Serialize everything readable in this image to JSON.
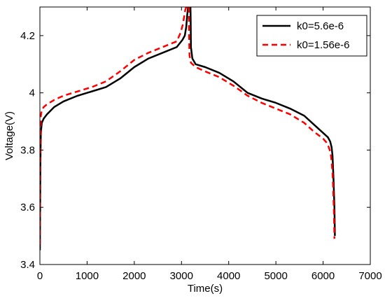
{
  "chart_data": {
    "type": "line",
    "title": "",
    "xlabel": "Time(s)",
    "ylabel": "Voltage(V)",
    "xlim": [
      0,
      7000
    ],
    "ylim": [
      3.4,
      4.3
    ],
    "xticks": [
      0,
      1000,
      2000,
      3000,
      4000,
      5000,
      6000,
      7000
    ],
    "xtick_labels": [
      "0",
      "1000",
      "2000",
      "3000",
      "4000",
      "5000",
      "6000",
      "7000"
    ],
    "yticks": [
      3.4,
      3.6,
      3.8,
      4.0,
      4.2
    ],
    "ytick_labels": [
      "3.4",
      "3.6",
      "3.8",
      "4",
      "4.2"
    ],
    "grid": false,
    "legend_position": "top-right",
    "series": [
      {
        "name": "k0=5.6e-6",
        "color": "#000000",
        "dash": "solid",
        "segments": [
          {
            "x": [
              0,
              10,
              20,
              40,
              80,
              150,
              300,
              500,
              800,
              1100,
              1400,
              1700,
              2000,
              2300,
              2600,
              2900,
              3020,
              3070,
              3100,
              3120,
              3140
            ],
            "y": [
              3.45,
              3.75,
              3.86,
              3.895,
              3.91,
              3.925,
              3.95,
              3.97,
              3.99,
              4.005,
              4.02,
              4.05,
              4.09,
              4.12,
              4.14,
              4.16,
              4.185,
              4.2,
              4.23,
              4.27,
              4.3
            ]
          },
          {
            "x": [
              3190,
              3195,
              3200,
              3230,
              3300,
              3500,
              3800,
              4100,
              4400,
              4700,
              5000,
              5300,
              5600,
              5800,
              6000,
              6100,
              6150,
              6180,
              6200,
              6210,
              6220,
              6230,
              6240,
              6250
            ],
            "y": [
              4.3,
              4.25,
              4.16,
              4.12,
              4.1,
              4.09,
              4.07,
              4.04,
              4.0,
              3.98,
              3.965,
              3.945,
              3.92,
              3.89,
              3.86,
              3.845,
              3.83,
              3.81,
              3.78,
              3.74,
              3.7,
              3.65,
              3.6,
              3.5
            ]
          }
        ]
      },
      {
        "name": "k0=1.56e-6",
        "color": "#ff0000",
        "dash": "dashed",
        "segments": [
          {
            "x": [
              0,
              10,
              20,
              40,
              80,
              150,
              300,
              500,
              800,
              1100,
              1400,
              1700,
              2000,
              2300,
              2600,
              2900,
              2980,
              3030,
              3060,
              3080,
              3100
            ],
            "y": [
              3.47,
              3.85,
              3.92,
              3.94,
              3.95,
              3.96,
              3.975,
              3.99,
              4.005,
              4.02,
              4.04,
              4.075,
              4.115,
              4.14,
              4.16,
              4.18,
              4.21,
              4.24,
              4.27,
              4.29,
              4.3
            ]
          },
          {
            "x": [
              3155,
              3160,
              3170,
              3200,
              3300,
              3500,
              3800,
              4100,
              4400,
              4700,
              5000,
              5300,
              5600,
              5800,
              6000,
              6080,
              6120,
              6160,
              6180,
              6200,
              6210,
              6220,
              6230,
              6240
            ],
            "y": [
              4.3,
              4.2,
              4.13,
              4.105,
              4.09,
              4.075,
              4.055,
              4.025,
              3.99,
              3.965,
              3.945,
              3.925,
              3.895,
              3.865,
              3.84,
              3.825,
              3.81,
              3.79,
              3.76,
              3.72,
              3.68,
              3.63,
              3.58,
              3.49
            ]
          }
        ]
      }
    ]
  }
}
